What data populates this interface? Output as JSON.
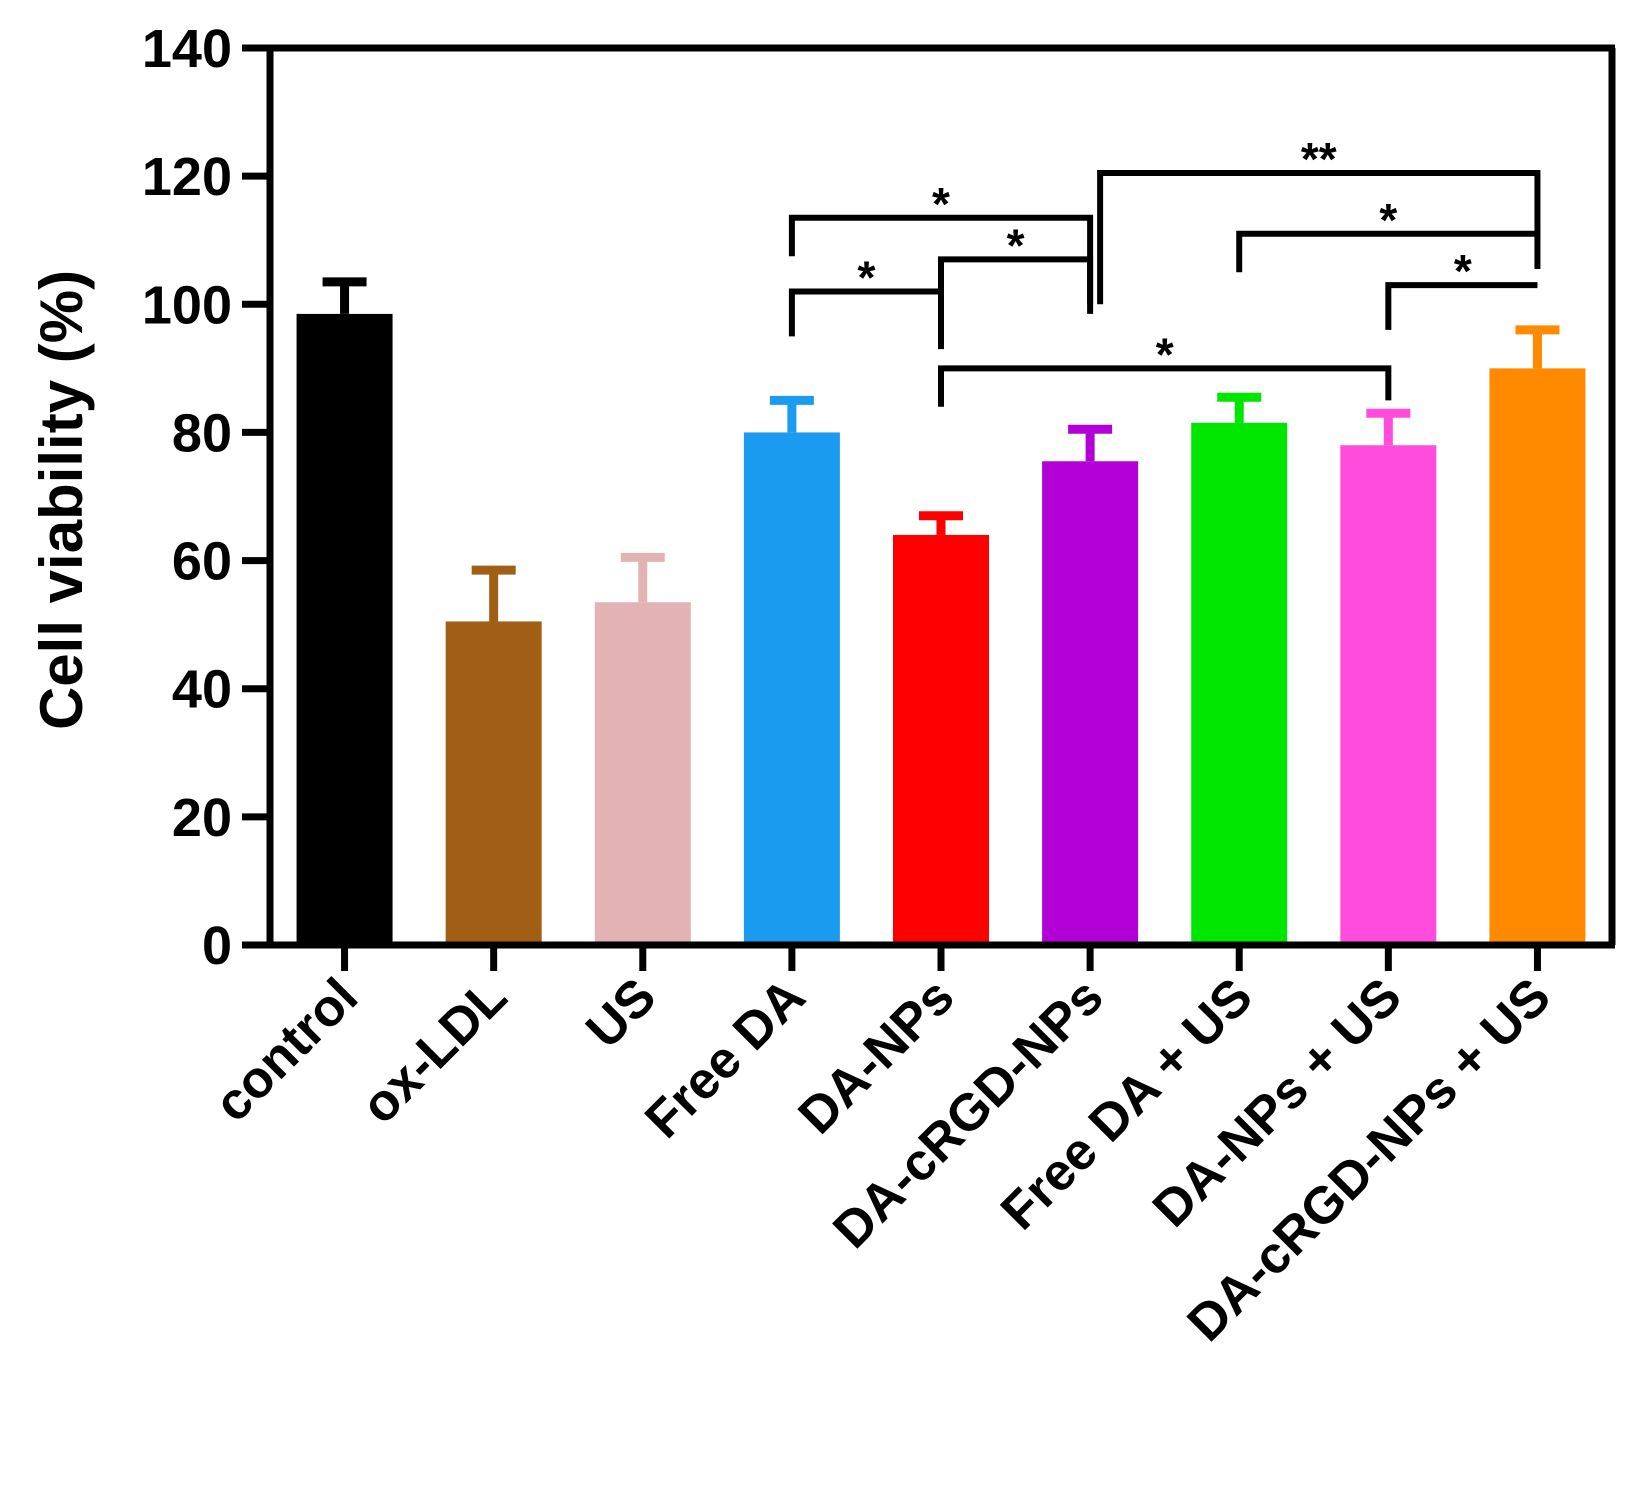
{
  "chart_data": {
    "type": "bar",
    "title": "",
    "xlabel": "",
    "ylabel": "Cell viability (%)",
    "ylim": [
      0,
      140
    ],
    "yticks": [
      0,
      20,
      40,
      60,
      80,
      100,
      120,
      140
    ],
    "grid": false,
    "categories": [
      "control",
      "ox-LDL",
      "US",
      "Free DA",
      "DA-NPs",
      "DA-cRGD-NPs",
      "Free DA + US",
      "DA-NPs + US",
      "DA-cRGD-NPs + US"
    ],
    "values": [
      98.5,
      50.5,
      53.5,
      80,
      64,
      75.5,
      81.5,
      78,
      90
    ],
    "errors": [
      5,
      8,
      7,
      5,
      3,
      5,
      4,
      5,
      6
    ],
    "colors": [
      "#000000",
      "#a05f14",
      "#e3b3b3",
      "#1a9bef",
      "#ff0000",
      "#b200d6",
      "#00e600",
      "#ff4cdc",
      "#ff8a00"
    ],
    "significance": [
      {
        "from": 3,
        "to": 4,
        "label": "*"
      },
      {
        "from": 4,
        "to": 5,
        "label": "*"
      },
      {
        "from": 3,
        "to": 5,
        "label": "*"
      },
      {
        "from": 4,
        "to": 7,
        "label": "*"
      },
      {
        "from": 7,
        "to": 8,
        "label": "*"
      },
      {
        "from": 6,
        "to": 8,
        "label": "*"
      },
      {
        "from": 5,
        "to": 8,
        "label": "**"
      }
    ]
  }
}
